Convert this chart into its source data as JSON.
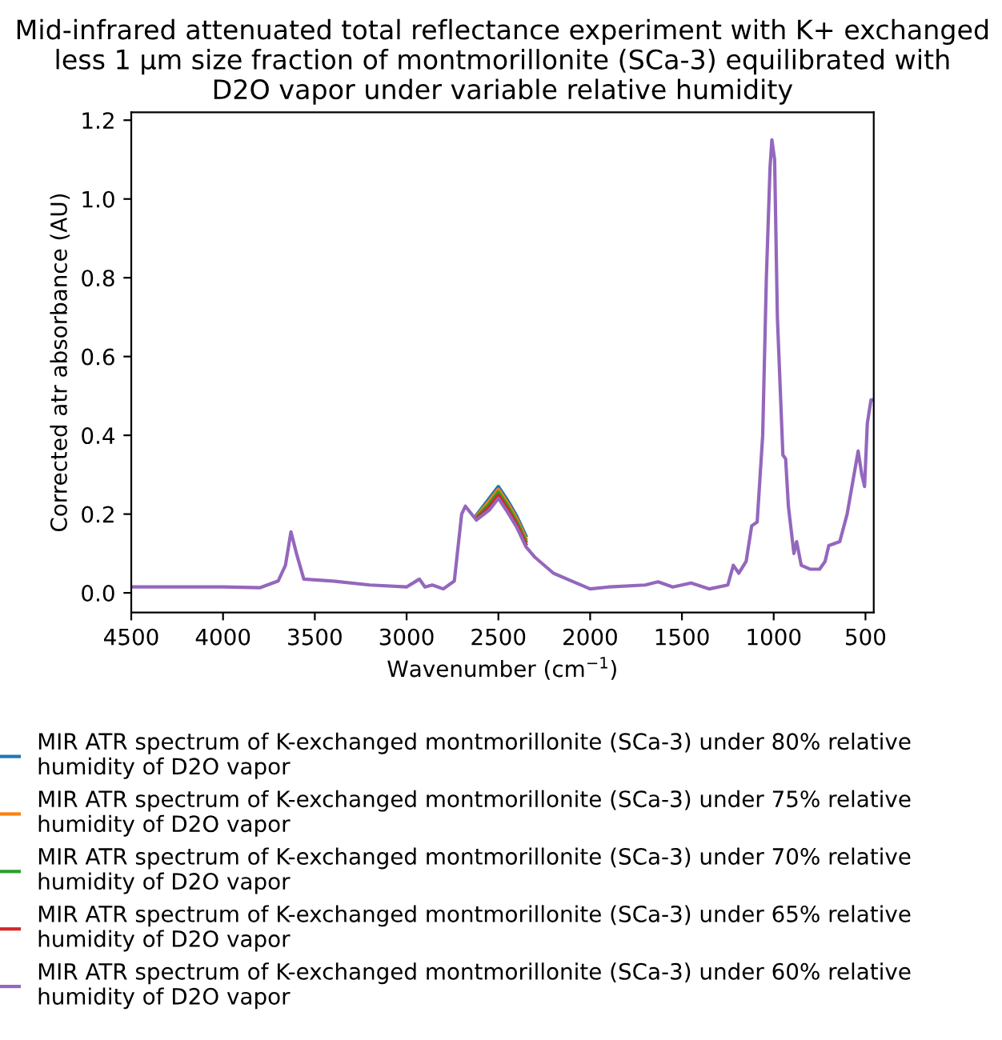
{
  "chart_data": {
    "type": "line",
    "title": "Mid-infrared attenuated total reflectance experiment with K+ exchanged\nless 1 μm size fraction of montmorillonite (SCa-3) equilibrated with\nD2O vapor under variable relative humidity",
    "xlabel": "Wavenumber (cm$^{−1}$)",
    "ylabel": "Corrected atr absorbance (AU)",
    "x": [
      4500,
      4000,
      3800,
      3700,
      3660,
      3630,
      3600,
      3560,
      3400,
      3200,
      3000,
      2930,
      2900,
      2860,
      2800,
      2740,
      2700,
      2680,
      2620,
      2550,
      2500,
      2450,
      2400,
      2350,
      2300,
      2200,
      2100,
      2000,
      1900,
      1700,
      1630,
      1550,
      1450,
      1350,
      1250,
      1220,
      1190,
      1150,
      1120,
      1090,
      1060,
      1040,
      1020,
      1010,
      995,
      980,
      950,
      935,
      920,
      890,
      875,
      850,
      800,
      750,
      720,
      700,
      640,
      600,
      540,
      520,
      505,
      490,
      470,
      455
    ],
    "xlim": [
      4500,
      455
    ],
    "xticks": [
      4500,
      4000,
      3500,
      3000,
      2500,
      2000,
      1500,
      1000,
      500
    ],
    "ylim": [
      -0.05,
      1.22
    ],
    "yticks": [
      {
        "value": 0,
        "label": "0.0"
      },
      0.2,
      0.4,
      0.6,
      0.8,
      {
        "value": 1,
        "label": "1.0"
      },
      1.2
    ],
    "legend": "bottom",
    "grid": false,
    "series": [
      {
        "name": "MIR ATR spectrum of K-exchanged montmorillonite (SCa-3) under 80% relative\nhumidity of D2O vapor",
        "color": "#1f77b4",
        "values": [
          null,
          null,
          null,
          null,
          null,
          null,
          null,
          null,
          null,
          null,
          null,
          null,
          null,
          null,
          null,
          null,
          null,
          null,
          0.197,
          0.24,
          0.27,
          0.235,
          0.195,
          0.145,
          null,
          null,
          null,
          null,
          null,
          null,
          null,
          null,
          null,
          null,
          null,
          null,
          null,
          null,
          null,
          null,
          null,
          null,
          null,
          null,
          null,
          null,
          null,
          null,
          null,
          null,
          null,
          null,
          null,
          null,
          null,
          null,
          null,
          null,
          null,
          null,
          null,
          null,
          null,
          null
        ]
      },
      {
        "name": "MIR ATR spectrum of K-exchanged montmorillonite (SCa-3) under 75% relative\nhumidity of D2O vapor",
        "color": "#ff7f0e",
        "values": [
          null,
          null,
          null,
          null,
          null,
          null,
          null,
          null,
          null,
          null,
          null,
          null,
          null,
          null,
          null,
          null,
          null,
          null,
          0.194,
          0.233,
          0.263,
          0.228,
          0.188,
          0.138,
          null,
          null,
          null,
          null,
          null,
          null,
          null,
          null,
          null,
          null,
          null,
          null,
          null,
          null,
          null,
          null,
          null,
          null,
          null,
          null,
          null,
          null,
          null,
          null,
          null,
          null,
          null,
          null,
          null,
          null,
          null,
          null,
          null,
          null,
          null,
          null,
          null,
          null,
          null,
          null
        ]
      },
      {
        "name": "MIR ATR spectrum of K-exchanged montmorillonite (SCa-3) under 70% relative\nhumidity of D2O vapor",
        "color": "#2ca02c",
        "values": [
          null,
          null,
          null,
          null,
          null,
          null,
          null,
          null,
          null,
          null,
          null,
          null,
          null,
          null,
          null,
          null,
          null,
          null,
          0.191,
          0.226,
          0.256,
          0.221,
          0.181,
          0.131,
          null,
          null,
          null,
          null,
          null,
          null,
          null,
          null,
          null,
          null,
          null,
          null,
          null,
          null,
          null,
          null,
          null,
          null,
          null,
          null,
          null,
          null,
          null,
          null,
          null,
          null,
          null,
          null,
          null,
          null,
          null,
          null,
          null,
          null,
          null,
          null,
          null,
          null,
          null,
          null
        ]
      },
      {
        "name": "MIR ATR spectrum of K-exchanged montmorillonite (SCa-3) under 65% relative\nhumidity of D2O vapor",
        "color": "#d62728",
        "values": [
          null,
          null,
          null,
          null,
          null,
          null,
          null,
          null,
          null,
          null,
          null,
          null,
          null,
          null,
          null,
          null,
          null,
          null,
          0.188,
          0.218,
          0.248,
          0.213,
          0.174,
          0.124,
          null,
          null,
          null,
          null,
          null,
          null,
          null,
          null,
          null,
          null,
          null,
          null,
          null,
          null,
          null,
          null,
          null,
          null,
          null,
          null,
          null,
          null,
          null,
          null,
          null,
          null,
          null,
          null,
          null,
          null,
          null,
          null,
          null,
          null,
          null,
          null,
          null,
          null,
          null,
          null
        ]
      },
      {
        "name": "MIR ATR spectrum of K-exchanged montmorillonite (SCa-3) under 60% relative\nhumidity of D2O vapor",
        "color": "#9467bd",
        "values": [
          0.015,
          0.015,
          0.013,
          0.03,
          0.07,
          0.155,
          0.1,
          0.035,
          0.03,
          0.02,
          0.015,
          0.035,
          0.015,
          0.02,
          0.01,
          0.03,
          0.2,
          0.22,
          0.185,
          0.21,
          0.24,
          0.205,
          0.167,
          0.117,
          0.09,
          0.05,
          0.03,
          0.01,
          0.015,
          0.02,
          0.028,
          0.015,
          0.025,
          0.01,
          0.02,
          0.07,
          0.05,
          0.08,
          0.17,
          0.18,
          0.4,
          0.8,
          1.08,
          1.15,
          1.1,
          0.7,
          0.35,
          0.34,
          0.22,
          0.1,
          0.13,
          0.07,
          0.06,
          0.06,
          0.08,
          0.12,
          0.13,
          0.2,
          0.36,
          0.3,
          0.27,
          0.43,
          0.49,
          0.49
        ]
      }
    ]
  }
}
